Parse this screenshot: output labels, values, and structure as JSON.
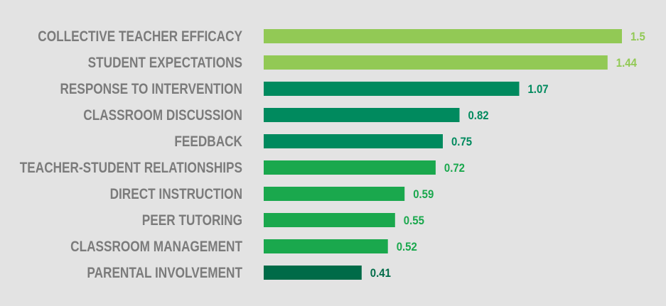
{
  "chart_data": {
    "type": "bar",
    "orientation": "horizontal",
    "categories": [
      "COLLECTIVE TEACHER EFFICACY",
      "STUDENT EXPECTATIONS",
      "RESPONSE TO INTERVENTION",
      "CLASSROOM DISCUSSION",
      "FEEDBACK",
      "TEACHER-STUDENT RELATIONSHIPS",
      "DIRECT INSTRUCTION",
      "PEER TUTORING",
      "CLASSROOM MANAGEMENT",
      "PARENTAL INVOLVEMENT"
    ],
    "values": [
      1.5,
      1.44,
      1.07,
      0.82,
      0.75,
      0.72,
      0.59,
      0.55,
      0.52,
      0.41
    ],
    "value_labels": [
      "1.5",
      "1.44",
      "1.07",
      "0.82",
      "0.75",
      "0.72",
      "0.59",
      "0.55",
      "0.52",
      "0.41"
    ],
    "bar_colors": [
      "#92c955",
      "#92c955",
      "#008a5e",
      "#008a5e",
      "#008a5e",
      "#1aa84d",
      "#1aa84d",
      "#1aa84d",
      "#1aa84d",
      "#006b48"
    ],
    "label_color": "#7b7b7b",
    "background_color": "#e3e3e3",
    "xlim": [
      0,
      1.5
    ],
    "grid": false,
    "legend": false,
    "title": "",
    "xlabel": "",
    "ylabel": ""
  }
}
